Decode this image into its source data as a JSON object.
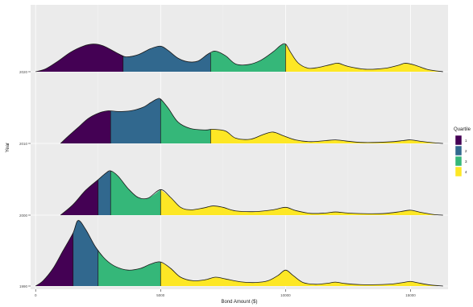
{
  "chart_data": {
    "type": "ridgeline",
    "xlabel": "Bond Amount ($)",
    "ylabel": "Year",
    "x_ticks": [
      0,
      5000,
      10000,
      15000
    ],
    "x_tick_labels": [
      "0",
      "5000",
      "10000",
      "15000"
    ],
    "xlim": [
      -200,
      16500
    ],
    "y_tick_labels": [
      "1990",
      "2000",
      "2010",
      "2020"
    ],
    "legend": {
      "title": "Quartile",
      "placement": "right",
      "entries": [
        {
          "label": "1",
          "color": "#440154"
        },
        {
          "label": "2",
          "color": "#31688e"
        },
        {
          "label": "3",
          "color": "#35b779"
        },
        {
          "label": "4",
          "color": "#fde725"
        }
      ]
    },
    "grid": true,
    "panel_background": "#ebebeb",
    "series": [
      {
        "name": "1990",
        "quartile_breaks": [
          1500,
          2500,
          5000
        ],
        "peak_height": 1.85,
        "density": [
          [
            0,
            0
          ],
          [
            300,
            0.15
          ],
          [
            700,
            0.5
          ],
          [
            1100,
            1.0
          ],
          [
            1500,
            1.5
          ],
          [
            1700,
            1.85
          ],
          [
            2000,
            1.6
          ],
          [
            2400,
            1.1
          ],
          [
            2800,
            0.75
          ],
          [
            3200,
            0.55
          ],
          [
            3700,
            0.45
          ],
          [
            4200,
            0.5
          ],
          [
            4600,
            0.62
          ],
          [
            5000,
            0.68
          ],
          [
            5400,
            0.5
          ],
          [
            5800,
            0.25
          ],
          [
            6300,
            0.15
          ],
          [
            6800,
            0.18
          ],
          [
            7200,
            0.25
          ],
          [
            7600,
            0.2
          ],
          [
            8200,
            0.12
          ],
          [
            8800,
            0.1
          ],
          [
            9300,
            0.15
          ],
          [
            9700,
            0.3
          ],
          [
            10000,
            0.45
          ],
          [
            10300,
            0.3
          ],
          [
            10700,
            0.1
          ],
          [
            11200,
            0.05
          ],
          [
            11700,
            0.08
          ],
          [
            12000,
            0.11
          ],
          [
            12400,
            0.07
          ],
          [
            13000,
            0.04
          ],
          [
            13700,
            0.04
          ],
          [
            14300,
            0.06
          ],
          [
            14700,
            0.1
          ],
          [
            15000,
            0.13
          ],
          [
            15300,
            0.09
          ],
          [
            15800,
            0.03
          ],
          [
            16300,
            0
          ]
        ]
      },
      {
        "name": "2000",
        "quartile_breaks": [
          2500,
          3000,
          5000
        ],
        "peak_height": 1.25,
        "density": [
          [
            1000,
            0
          ],
          [
            1500,
            0.3
          ],
          [
            2000,
            0.7
          ],
          [
            2500,
            1.0
          ],
          [
            2800,
            1.18
          ],
          [
            3000,
            1.25
          ],
          [
            3300,
            1.1
          ],
          [
            3700,
            0.75
          ],
          [
            4100,
            0.5
          ],
          [
            4500,
            0.48
          ],
          [
            5000,
            0.72
          ],
          [
            5400,
            0.5
          ],
          [
            5800,
            0.22
          ],
          [
            6200,
            0.15
          ],
          [
            6700,
            0.2
          ],
          [
            7100,
            0.26
          ],
          [
            7500,
            0.22
          ],
          [
            8000,
            0.12
          ],
          [
            8800,
            0.1
          ],
          [
            9500,
            0.15
          ],
          [
            10000,
            0.22
          ],
          [
            10400,
            0.13
          ],
          [
            11000,
            0.05
          ],
          [
            11600,
            0.06
          ],
          [
            12000,
            0.09
          ],
          [
            12500,
            0.06
          ],
          [
            13300,
            0.04
          ],
          [
            14000,
            0.05
          ],
          [
            14600,
            0.1
          ],
          [
            15000,
            0.14
          ],
          [
            15400,
            0.08
          ],
          [
            15900,
            0.02
          ],
          [
            16300,
            0
          ]
        ]
      },
      {
        "name": "2010",
        "quartile_breaks": [
          3000,
          5000,
          7000
        ],
        "peak_height": 1.25,
        "density": [
          [
            1000,
            0
          ],
          [
            1300,
            0.2
          ],
          [
            1700,
            0.45
          ],
          [
            2100,
            0.7
          ],
          [
            2500,
            0.85
          ],
          [
            2900,
            0.92
          ],
          [
            3300,
            0.9
          ],
          [
            3800,
            0.92
          ],
          [
            4300,
            1.02
          ],
          [
            4600,
            1.15
          ],
          [
            4850,
            1.25
          ],
          [
            5000,
            1.25
          ],
          [
            5300,
            1.0
          ],
          [
            5700,
            0.6
          ],
          [
            6200,
            0.42
          ],
          [
            6800,
            0.38
          ],
          [
            7100,
            0.4
          ],
          [
            7600,
            0.35
          ],
          [
            8000,
            0.15
          ],
          [
            8600,
            0.12
          ],
          [
            9100,
            0.25
          ],
          [
            9500,
            0.32
          ],
          [
            9900,
            0.22
          ],
          [
            10400,
            0.1
          ],
          [
            11000,
            0.05
          ],
          [
            11600,
            0.08
          ],
          [
            12000,
            0.1
          ],
          [
            12400,
            0.07
          ],
          [
            13000,
            0.03
          ],
          [
            13700,
            0.03
          ],
          [
            14300,
            0.05
          ],
          [
            14700,
            0.08
          ],
          [
            15000,
            0.1
          ],
          [
            15400,
            0.06
          ],
          [
            15900,
            0.02
          ],
          [
            16300,
            0
          ]
        ]
      },
      {
        "name": "2020",
        "quartile_breaks": [
          3500,
          7000,
          10000
        ],
        "peak_height": 0.8,
        "density": [
          [
            0,
            0
          ],
          [
            400,
            0.08
          ],
          [
            900,
            0.3
          ],
          [
            1400,
            0.55
          ],
          [
            1900,
            0.72
          ],
          [
            2300,
            0.78
          ],
          [
            2700,
            0.73
          ],
          [
            3200,
            0.55
          ],
          [
            3600,
            0.42
          ],
          [
            4100,
            0.48
          ],
          [
            4600,
            0.65
          ],
          [
            5000,
            0.72
          ],
          [
            5300,
            0.6
          ],
          [
            5700,
            0.38
          ],
          [
            6100,
            0.28
          ],
          [
            6500,
            0.3
          ],
          [
            6900,
            0.5
          ],
          [
            7200,
            0.58
          ],
          [
            7600,
            0.45
          ],
          [
            8000,
            0.22
          ],
          [
            8500,
            0.2
          ],
          [
            9000,
            0.32
          ],
          [
            9500,
            0.56
          ],
          [
            9800,
            0.74
          ],
          [
            10000,
            0.78
          ],
          [
            10200,
            0.55
          ],
          [
            10500,
            0.25
          ],
          [
            10900,
            0.1
          ],
          [
            11300,
            0.12
          ],
          [
            11800,
            0.2
          ],
          [
            12100,
            0.24
          ],
          [
            12500,
            0.15
          ],
          [
            13200,
            0.07
          ],
          [
            14000,
            0.1
          ],
          [
            14500,
            0.18
          ],
          [
            14800,
            0.24
          ],
          [
            15200,
            0.18
          ],
          [
            15700,
            0.06
          ],
          [
            16300,
            0
          ]
        ]
      }
    ]
  }
}
